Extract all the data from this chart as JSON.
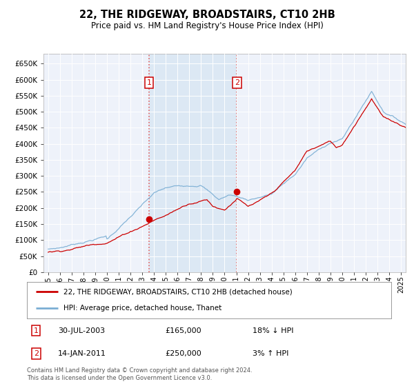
{
  "title": "22, THE RIDGEWAY, BROADSTAIRS, CT10 2HB",
  "subtitle": "Price paid vs. HM Land Registry's House Price Index (HPI)",
  "legend_label_red": "22, THE RIDGEWAY, BROADSTAIRS, CT10 2HB (detached house)",
  "legend_label_blue": "HPI: Average price, detached house, Thanet",
  "marker1_date_x": 2003.58,
  "marker1_price": 165000,
  "marker2_date_x": 2011.04,
  "marker2_price": 250000,
  "footer": "Contains HM Land Registry data © Crown copyright and database right 2024.\nThis data is licensed under the Open Government Licence v3.0.",
  "bg_color": "#ffffff",
  "plot_bg_color": "#eef2fa",
  "grid_color": "#ffffff",
  "red_color": "#cc0000",
  "blue_color": "#7aaed4",
  "marker_box_color": "#cc0000",
  "vline_color": "#e06060",
  "shade_color": "#dce8f4",
  "ylim_min": 0,
  "ylim_max": 680000,
  "xlim_min": 1994.6,
  "xlim_max": 2025.4,
  "yticks": [
    0,
    50000,
    100000,
    150000,
    200000,
    250000,
    300000,
    350000,
    400000,
    450000,
    500000,
    550000,
    600000,
    650000
  ],
  "xticks": [
    1995,
    1996,
    1997,
    1998,
    1999,
    2000,
    2001,
    2002,
    2003,
    2004,
    2005,
    2006,
    2007,
    2008,
    2009,
    2010,
    2011,
    2012,
    2013,
    2014,
    2015,
    2016,
    2017,
    2018,
    2019,
    2020,
    2021,
    2022,
    2023,
    2024,
    2025
  ]
}
